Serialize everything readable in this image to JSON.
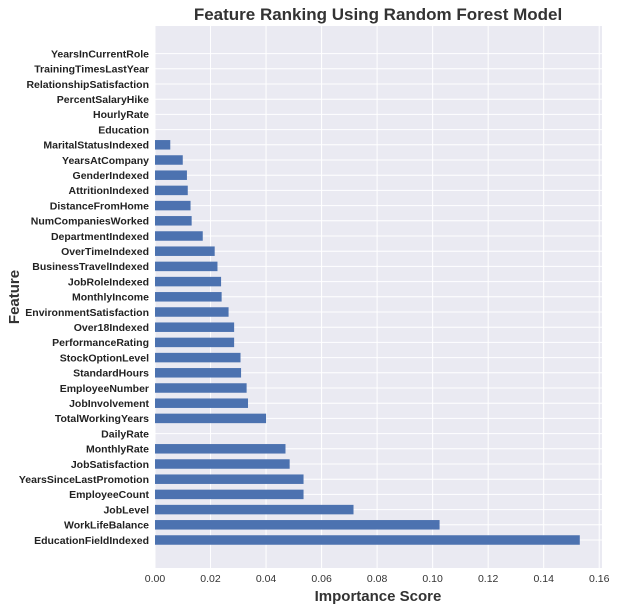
{
  "chart_data": {
    "type": "bar",
    "orientation": "horizontal",
    "title": "Feature Ranking Using Random Forest Model",
    "xlabel": "Importance Score",
    "ylabel": "Feature",
    "xlim": [
      0,
      0.161
    ],
    "xticks": [
      0.0,
      0.02,
      0.04,
      0.06,
      0.08,
      0.1,
      0.12,
      0.14,
      0.16
    ],
    "xtick_labels": [
      "0.00",
      "0.02",
      "0.04",
      "0.06",
      "0.08",
      "0.10",
      "0.12",
      "0.14",
      "0.16"
    ],
    "grid": true,
    "bar_color": "#4c72b0",
    "background_color": "#eaeaf2",
    "categories": [
      "EducationFieldIndexed",
      "WorkLifeBalance",
      "JobLevel",
      "EmployeeCount",
      "YearsSinceLastPromotion",
      "JobSatisfaction",
      "MonthlyRate",
      "DailyRate",
      "TotalWorkingYears",
      "JobInvolvement",
      "EmployeeNumber",
      "StandardHours",
      "StockOptionLevel",
      "PerformanceRating",
      "Over18Indexed",
      "EnvironmentSatisfaction",
      "MonthlyIncome",
      "JobRoleIndexed",
      "BusinessTravelIndexed",
      "OverTimeIndexed",
      "DepartmentIndexed",
      "NumCompaniesWorked",
      "DistanceFromHome",
      "AttritionIndexed",
      "GenderIndexed",
      "YearsAtCompany",
      "MaritalStatusIndexed",
      "Education",
      "HourlyRate",
      "PercentSalaryHike",
      "RelationshipSatisfaction",
      "TrainingTimesLastYear",
      "YearsInCurrentRole"
    ],
    "values": [
      0.153,
      0.1025,
      0.0715,
      0.0535,
      0.0535,
      0.0485,
      0.047,
      0.0,
      0.04,
      0.0335,
      0.033,
      0.031,
      0.0308,
      0.0285,
      0.0285,
      0.0265,
      0.024,
      0.0238,
      0.0225,
      0.0215,
      0.0172,
      0.0132,
      0.0128,
      0.0118,
      0.0115,
      0.01,
      0.0055,
      0.0,
      0.0,
      0.0,
      0.0,
      0.0,
      0.0
    ]
  }
}
